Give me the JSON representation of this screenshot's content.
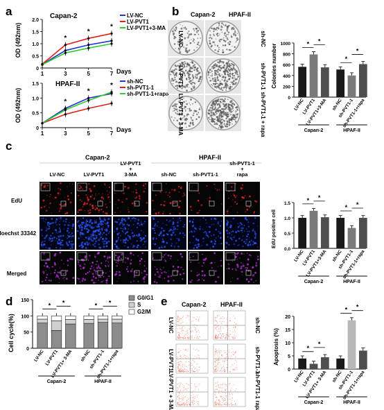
{
  "panels": {
    "a": "a",
    "b": "b",
    "c": "c",
    "d": "d",
    "e": "e"
  },
  "colors": {
    "black": "#111111",
    "red": "#e0201b",
    "green": "#2ecc2e",
    "blue": "#2232d8",
    "bar_dark": "#1a1a1a",
    "bar_mid": "#7a7a7a",
    "bar_light": "#b8b8b8",
    "bar_gray": "#4e4e4e",
    "cell_edu": "#d22222",
    "cell_hoechst": "#2850e8",
    "cell_merged": "#b030d0"
  },
  "panel_a": {
    "ylabel": "OD (492nm)",
    "xlabel": "Days",
    "top": {
      "title": "Capan-2",
      "legend": [
        "LV-NC",
        "LV-PVT1",
        "LV-PVT1+3-MA"
      ],
      "star": "*"
    },
    "bottom": {
      "title": "HPAF-II",
      "legend": [
        "sh-NC",
        "sh-PVT1-1",
        "sh-PVT1-1+rapa"
      ],
      "star": "*"
    }
  },
  "panel_b": {
    "col_headers": [
      "Capan-2",
      "HPAF-II"
    ],
    "left_rows": [
      "LV-NC",
      "LV-PVT1",
      "LV-PVT1 + 3-MA"
    ],
    "right_rows": [
      "sh-NC",
      "sh-PVT1-1",
      "sh-PVT1-1 + rapa"
    ],
    "ylabel": "Colonies number",
    "group1": "Capan-2",
    "group2": "HPAF-II"
  },
  "panel_c": {
    "groups": [
      "Capan-2",
      "HPAF-II"
    ],
    "cols": [
      "LV-NC",
      "LV-PVT1",
      "LV-PVT1 + 3-MA",
      "sh-NC",
      "sh-PVT1-1",
      "sh-PVT1-1 + rapa"
    ],
    "rows": [
      "EdU",
      "Hoechst 33342",
      "Merged"
    ],
    "ylabel": "EdU positive cell",
    "group1": "Capan-2",
    "group2": "HPAF-II"
  },
  "panel_d": {
    "ylabel": "Cell cycle(%)",
    "legend": [
      "G0/G1",
      "S",
      "G2/M"
    ],
    "group1": "Capan-2",
    "group2": "HPAF-II"
  },
  "panel_e": {
    "col_headers": [
      "Capan-2",
      "HPAF-II"
    ],
    "left_rows": [
      "LV-NC",
      "LV-PVT1",
      "LV-PVT1 + 3-MA"
    ],
    "right_rows": [
      "sh-NC",
      "sh-PVT1-1",
      "sh-PVT1-1 rapa"
    ],
    "ylabel": "Apoptosis (%)",
    "group1": "Capan-2",
    "group2": "HPAF-II"
  },
  "chart_data": [
    {
      "id": "a-top",
      "type": "line",
      "title": "Capan-2",
      "xlabel": "Days",
      "ylabel": "OD (492nm)",
      "x": [
        1,
        3,
        5,
        7
      ],
      "xlim": [
        1,
        7
      ],
      "ylim": [
        0,
        2.0
      ],
      "yticks": [
        0,
        0.5,
        1.0,
        1.5,
        2.0
      ],
      "xticks": [
        1,
        3,
        5,
        7
      ],
      "series": [
        {
          "name": "LV-NC",
          "color": "#2232d8",
          "values": [
            0.15,
            0.72,
            0.95,
            1.12
          ]
        },
        {
          "name": "LV-PVT1",
          "color": "#e0201b",
          "values": [
            0.16,
            0.95,
            1.22,
            1.42
          ]
        },
        {
          "name": "LV-PVT1+3-MA",
          "color": "#2ecc2e",
          "values": [
            0.14,
            0.62,
            0.82,
            1.0
          ]
        }
      ],
      "annotations": [
        {
          "text": "*",
          "x": 3
        },
        {
          "text": "*",
          "x": 5
        },
        {
          "text": "*",
          "x": 7
        }
      ]
    },
    {
      "id": "a-bottom",
      "type": "line",
      "title": "HPAF-II",
      "xlabel": "Days",
      "ylabel": "OD (492nm)",
      "x": [
        1,
        3,
        5,
        7
      ],
      "xlim": [
        1,
        7
      ],
      "ylim": [
        0,
        1.5
      ],
      "yticks": [
        0,
        0.5,
        1.0,
        1.5
      ],
      "xticks": [
        1,
        3,
        5,
        7
      ],
      "series": [
        {
          "name": "sh-NC",
          "color": "#2232d8",
          "values": [
            0.15,
            0.65,
            1.0,
            1.15
          ]
        },
        {
          "name": "sh-PVT1-1",
          "color": "#e0201b",
          "values": [
            0.15,
            0.45,
            0.65,
            0.82
          ]
        },
        {
          "name": "sh-PVT1-1+rapa",
          "color": "#2ecc2e",
          "values": [
            0.15,
            0.6,
            0.92,
            1.2
          ]
        }
      ],
      "annotations": [
        {
          "text": "*",
          "x": 3
        },
        {
          "text": "*",
          "x": 5
        },
        {
          "text": "*",
          "x": 7
        }
      ]
    },
    {
      "id": "b-bar",
      "type": "bar",
      "ylabel": "Colonies number",
      "categories": [
        "LV-NC",
        "LV-PVT1",
        "LV-PVT1+3-MA",
        "sh-NC",
        "sh-PVT1-1",
        "sh-PVT1-1+rapa"
      ],
      "values": [
        560,
        790,
        550,
        510,
        400,
        610
      ],
      "ylim": [
        0,
        1000
      ],
      "yticks": [
        0,
        200,
        400,
        600,
        800,
        1000
      ],
      "colors": [
        "#1a1a1a",
        "#7a7a7a",
        "#4e4e4e",
        "#1a1a1a",
        "#7a7a7a",
        "#4e4e4e"
      ],
      "significance": [
        {
          "from": 0,
          "to": 1,
          "text": "*"
        },
        {
          "from": 1,
          "to": 2,
          "text": "*"
        },
        {
          "from": 3,
          "to": 4,
          "text": "*"
        },
        {
          "from": 4,
          "to": 5,
          "text": "*"
        }
      ]
    },
    {
      "id": "c-bar",
      "type": "bar",
      "ylabel": "EdU positive cell",
      "categories": [
        "LV-NC",
        "LV-PVT1",
        "LV-PVT1+3-MA",
        "sh-NC",
        "sh-PVT1-1",
        "sh-PVT1-1+rapa"
      ],
      "values": [
        1.0,
        1.23,
        1.02,
        1.0,
        0.67,
        1.0
      ],
      "ylim": [
        0,
        1.5
      ],
      "yticks": [
        0,
        0.5,
        1.0,
        1.5
      ],
      "colors": [
        "#1a1a1a",
        "#7a7a7a",
        "#4e4e4e",
        "#1a1a1a",
        "#7a7a7a",
        "#4e4e4e"
      ],
      "significance": [
        {
          "from": 0,
          "to": 1,
          "text": "*"
        },
        {
          "from": 1,
          "to": 2,
          "text": "*"
        },
        {
          "from": 3,
          "to": 4,
          "text": "*"
        },
        {
          "from": 4,
          "to": 5,
          "text": "*"
        }
      ]
    },
    {
      "id": "d-bar",
      "type": "bar",
      "ylabel": "Cell cycle(%)",
      "categories": [
        "LV-NC",
        "LV-PVT1",
        "LV-PVT1+ 3-MA",
        "sh-NC",
        "sh-PVT1-1",
        "sh-PVT1-1+rapa"
      ],
      "ylim": [
        0,
        150
      ],
      "yticks": [
        0,
        50,
        100,
        150
      ],
      "series": [
        {
          "name": "G0/G1",
          "color": "#8c8c8c",
          "values": [
            78,
            55,
            75,
            77,
            80,
            78
          ]
        },
        {
          "name": "S",
          "color": "#d0d0d0",
          "values": [
            12,
            30,
            14,
            12,
            10,
            12
          ]
        },
        {
          "name": "G2/M",
          "color": "#ffffff",
          "values": [
            10,
            15,
            11,
            11,
            10,
            10
          ]
        }
      ],
      "significance": [
        {
          "from": 0,
          "to": 1,
          "text": "*"
        },
        {
          "from": 1,
          "to": 2,
          "text": "*"
        },
        {
          "from": 3,
          "to": 4,
          "text": "*"
        },
        {
          "from": 4,
          "to": 5,
          "text": "*"
        }
      ]
    },
    {
      "id": "e-bar",
      "type": "bar",
      "ylabel": "Apoptosis (%)",
      "categories": [
        "LV-NC",
        "LV-PVT1",
        "LV-PVT1+ 3-MA",
        "sh-NC",
        "sh-PVT1-1",
        "sh-PVT1-1+rapa"
      ],
      "values": [
        4,
        2,
        4.5,
        4,
        18.5,
        7
      ],
      "ylim": [
        0,
        20
      ],
      "yticks": [
        0,
        5,
        10,
        15,
        20
      ],
      "colors": [
        "#1a1a1a",
        "#4e4e4e",
        "#4e4e4e",
        "#1a1a1a",
        "#b8b8b8",
        "#4e4e4e"
      ],
      "significance": [
        {
          "from": 0,
          "to": 1,
          "text": "*"
        },
        {
          "from": 1,
          "to": 2,
          "text": "*"
        },
        {
          "from": 3,
          "to": 4,
          "text": "*"
        },
        {
          "from": 4,
          "to": 5,
          "text": "*"
        }
      ]
    }
  ]
}
